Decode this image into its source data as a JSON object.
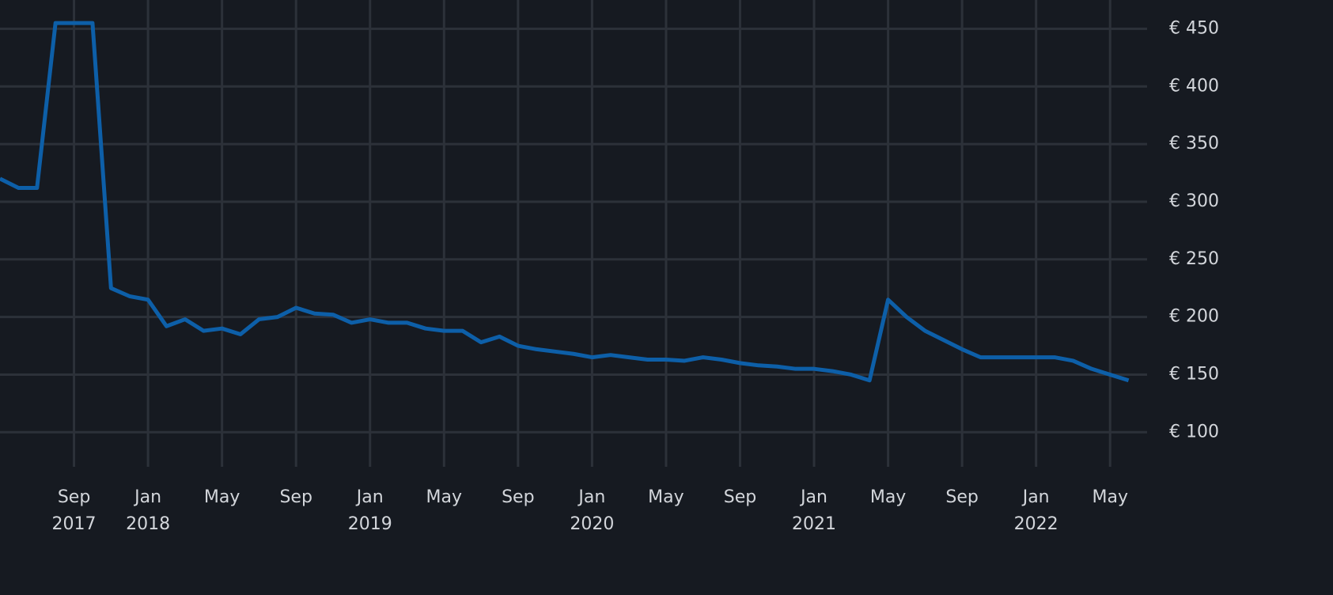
{
  "chart_data": {
    "type": "line",
    "x": [
      "2017-05",
      "2017-06",
      "2017-07",
      "2017-08",
      "2017-09",
      "2017-10",
      "2017-11",
      "2017-12",
      "2018-01",
      "2018-02",
      "2018-03",
      "2018-04",
      "2018-05",
      "2018-06",
      "2018-07",
      "2018-08",
      "2018-09",
      "2018-10",
      "2018-11",
      "2018-12",
      "2019-01",
      "2019-02",
      "2019-03",
      "2019-04",
      "2019-05",
      "2019-06",
      "2019-07",
      "2019-08",
      "2019-09",
      "2019-10",
      "2019-11",
      "2019-12",
      "2020-01",
      "2020-02",
      "2020-03",
      "2020-04",
      "2020-05",
      "2020-06",
      "2020-07",
      "2020-08",
      "2020-09",
      "2020-10",
      "2020-11",
      "2020-12",
      "2021-01",
      "2021-02",
      "2021-03",
      "2021-04",
      "2021-05",
      "2021-06",
      "2021-07",
      "2021-08",
      "2021-09",
      "2021-10",
      "2021-11",
      "2021-12",
      "2022-01",
      "2022-02",
      "2022-03",
      "2022-04",
      "2022-05",
      "2022-06"
    ],
    "series": [
      {
        "color": "#0d5fa8",
        "values": [
          320,
          312,
          312,
          455,
          455,
          455,
          225,
          218,
          215,
          192,
          198,
          188,
          190,
          185,
          198,
          200,
          208,
          203,
          202,
          195,
          198,
          195,
          195,
          190,
          188,
          188,
          178,
          183,
          175,
          172,
          170,
          168,
          165,
          167,
          165,
          163,
          163,
          162,
          165,
          163,
          160,
          158,
          157,
          155,
          155,
          153,
          150,
          145,
          215,
          200,
          188,
          180,
          172,
          165,
          165,
          165,
          165,
          165,
          162,
          155,
          150,
          145
        ]
      }
    ],
    "xlim": [
      "2017-05",
      "2022-07"
    ],
    "xticks": [
      {
        "value": "2017-09",
        "label": "Sep\n2017"
      },
      {
        "value": "2018-01",
        "label": "Jan\n2018"
      },
      {
        "value": "2018-05",
        "label": "May"
      },
      {
        "value": "2018-09",
        "label": "Sep"
      },
      {
        "value": "2019-01",
        "label": "Jan\n2019"
      },
      {
        "value": "2019-05",
        "label": "May"
      },
      {
        "value": "2019-09",
        "label": "Sep"
      },
      {
        "value": "2020-01",
        "label": "Jan\n2020"
      },
      {
        "value": "2020-05",
        "label": "May"
      },
      {
        "value": "2020-09",
        "label": "Sep"
      },
      {
        "value": "2021-01",
        "label": "Jan\n2021"
      },
      {
        "value": "2021-05",
        "label": "May"
      },
      {
        "value": "2021-09",
        "label": "Sep"
      },
      {
        "value": "2022-01",
        "label": "Jan\n2022"
      },
      {
        "value": "2022-05",
        "label": "May"
      }
    ],
    "ylim": [
      70,
      475
    ],
    "yticks": [
      {
        "value": 100,
        "label": "€ 100"
      },
      {
        "value": 150,
        "label": "€ 150"
      },
      {
        "value": 200,
        "label": "€ 200"
      },
      {
        "value": 250,
        "label": "€ 250"
      },
      {
        "value": 300,
        "label": "€ 300"
      },
      {
        "value": 350,
        "label": "€ 350"
      },
      {
        "value": 400,
        "label": "€ 400"
      },
      {
        "value": 450,
        "label": "€ 450"
      }
    ],
    "grid": true
  }
}
